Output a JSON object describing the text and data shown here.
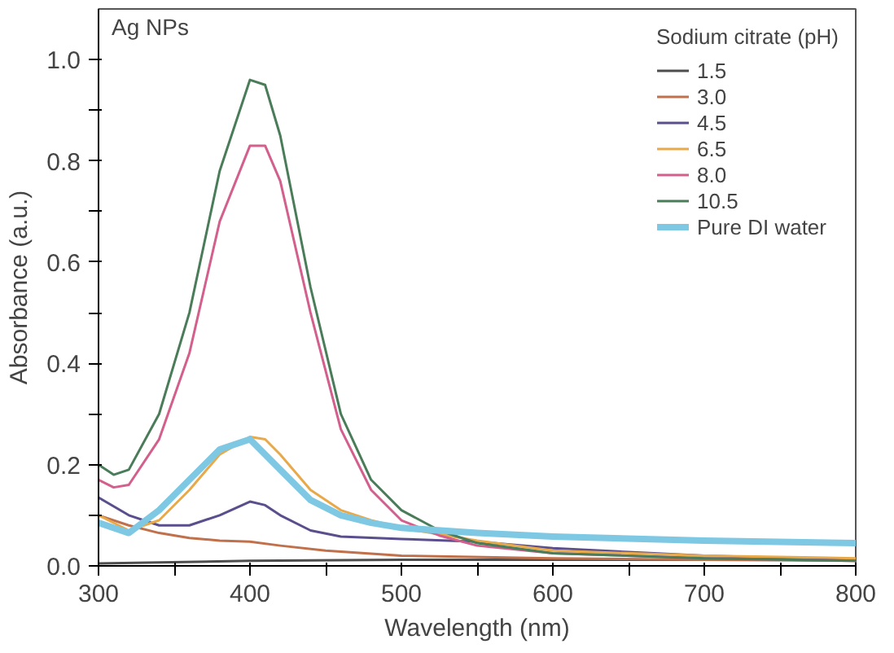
{
  "chart_data": {
    "type": "line",
    "xlabel": "Wavelength (nm)",
    "ylabel": "Absorbance (a.u.)",
    "legend_title": "Sodium citrate (pH)",
    "annotations": [
      "Ag NPs"
    ],
    "xlim": [
      300,
      800
    ],
    "ylim": [
      0,
      1.1
    ],
    "xticks": [
      300,
      {
        "value": 350,
        "label": null
      },
      400,
      {
        "value": 450,
        "label": null
      },
      500,
      {
        "value": 550,
        "label": null
      },
      600,
      {
        "value": 650,
        "label": null
      },
      700,
      {
        "value": 750,
        "label": null
      },
      800
    ],
    "yticks": [
      {
        "value": 0,
        "label": "0.0"
      },
      {
        "value": 0.1,
        "label": null
      },
      0.2,
      {
        "value": 0.3,
        "label": null
      },
      0.4,
      {
        "value": 0.5,
        "label": null
      },
      0.6,
      {
        "value": 0.7,
        "label": null
      },
      0.8,
      {
        "value": 0.9,
        "label": null
      },
      {
        "value": 1,
        "label": "1.0"
      }
    ],
    "grid": false,
    "legend": "top right",
    "marker": "none",
    "line_style": "solid",
    "series": [
      {
        "name": "1.5",
        "color": "#4d4d4d",
        "x": [
          300,
          400,
          500,
          600,
          800
        ],
        "values": [
          0.005,
          0.01,
          0.012,
          0.012,
          0.012
        ]
      },
      {
        "name": "3.0",
        "color": "#c0704a",
        "x": [
          300,
          320,
          340,
          360,
          380,
          400,
          420,
          450,
          500,
          600,
          700,
          800
        ],
        "values": [
          0.1,
          0.08,
          0.065,
          0.055,
          0.05,
          0.048,
          0.04,
          0.03,
          0.02,
          0.015,
          0.012,
          0.01
        ]
      },
      {
        "name": "4.5",
        "color": "#5a4e8c",
        "x": [
          300,
          320,
          340,
          360,
          380,
          400,
          410,
          420,
          440,
          460,
          500,
          550,
          600,
          700,
          800
        ],
        "values": [
          0.135,
          0.1,
          0.08,
          0.08,
          0.1,
          0.127,
          0.12,
          0.1,
          0.07,
          0.058,
          0.053,
          0.048,
          0.035,
          0.02,
          0.012
        ]
      },
      {
        "name": "6.5",
        "color": "#e8a94a",
        "x": [
          300,
          320,
          340,
          360,
          380,
          400,
          410,
          420,
          440,
          460,
          480,
          500,
          550,
          600,
          700,
          800
        ],
        "values": [
          0.1,
          0.07,
          0.09,
          0.15,
          0.22,
          0.255,
          0.25,
          0.22,
          0.15,
          0.11,
          0.09,
          0.075,
          0.05,
          0.03,
          0.02,
          0.015
        ]
      },
      {
        "name": "8.0",
        "color": "#d35f8d",
        "x": [
          300,
          310,
          320,
          340,
          360,
          380,
          400,
          410,
          420,
          440,
          460,
          480,
          500,
          525,
          550,
          600,
          700,
          800
        ],
        "values": [
          0.17,
          0.155,
          0.16,
          0.25,
          0.42,
          0.68,
          0.83,
          0.83,
          0.76,
          0.5,
          0.27,
          0.15,
          0.09,
          0.06,
          0.04,
          0.025,
          0.015,
          0.01
        ]
      },
      {
        "name": "10.5",
        "color": "#4a7c59",
        "x": [
          300,
          310,
          320,
          340,
          360,
          380,
          400,
          410,
          420,
          440,
          460,
          480,
          500,
          525,
          550,
          600,
          700,
          800
        ],
        "values": [
          0.2,
          0.18,
          0.19,
          0.3,
          0.5,
          0.78,
          0.96,
          0.95,
          0.85,
          0.55,
          0.3,
          0.17,
          0.11,
          0.07,
          0.045,
          0.025,
          0.015,
          0.01
        ]
      },
      {
        "name": "Pure DI water",
        "color": "#7ec8e3",
        "x": [
          300,
          320,
          340,
          360,
          380,
          400,
          420,
          440,
          460,
          480,
          500,
          550,
          600,
          700,
          800
        ],
        "values": [
          0.085,
          0.065,
          0.11,
          0.17,
          0.23,
          0.25,
          0.19,
          0.13,
          0.1,
          0.085,
          0.075,
          0.065,
          0.058,
          0.05,
          0.045
        ]
      }
    ]
  }
}
